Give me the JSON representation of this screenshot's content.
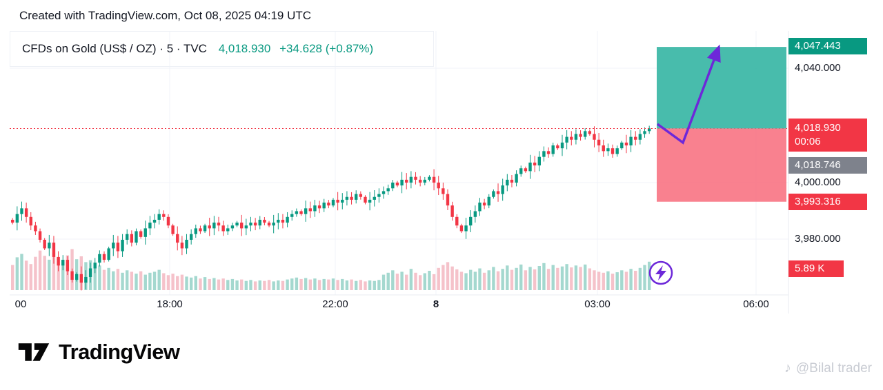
{
  "header": {
    "credit": "Created with TradingView.com, Oct 08, 2025 04:19 UTC"
  },
  "legend": {
    "symbol": "CFDs on Gold (US$ / OZ) · 5 · TVC",
    "price": "4,018.930",
    "change": "+34.628 (+0.87%)"
  },
  "price_scale": {
    "target_badge": "4,047.443",
    "gridline_labels": [
      "4,040.000",
      "4,000.000",
      "3,980.000"
    ],
    "last_price_badge": {
      "price": "4,018.930",
      "countdown": "00:06"
    },
    "prev_close_badge": "4,018.746",
    "stop_badge": "3,993.316",
    "volume_badge": "5.89 K"
  },
  "time_axis": [
    "00",
    "18:00",
    "22:00",
    "8",
    "03:00",
    "06:00"
  ],
  "footer": {
    "brand": "TradingView",
    "watermark": "@Bilal trader"
  },
  "icons": {
    "music_note": "♪",
    "lightning": "lightning-bolt"
  },
  "colors": {
    "up": "#089981",
    "down": "#f23645",
    "vol_up": "#a4d8cf",
    "vol_down": "#f5c2ca",
    "profit_zone": "#2fb3a1",
    "loss_zone": "#f8707f",
    "arrow": "#6d28d9",
    "badge_teal": "#089981",
    "badge_red": "#f23645",
    "badge_gray": "#7e828c",
    "grid": "#f0f3fa",
    "text": "#131722"
  },
  "chart_data": {
    "type": "candlestick",
    "title": "CFDs on Gold (US$ / OZ) · 5 · TVC",
    "interval_minutes": 5,
    "last_price": 4018.93,
    "change": 34.628,
    "change_pct": 0.87,
    "y_tick_labels": [
      4040.0,
      4000.0,
      3980.0
    ],
    "x_tick_labels": [
      "00",
      "18:00",
      "22:00",
      "8",
      "03:00",
      "06:00"
    ],
    "ylim": [
      3961,
      4053
    ],
    "position_tool": {
      "type": "long",
      "entry": 4018.93,
      "target": 4047.443,
      "stop": 3993.316
    },
    "prev_close": 4018.746,
    "last_volume_label": "5.89 K",
    "closes": [
      3986,
      3989,
      3991,
      3988,
      3985,
      3983,
      3980,
      3977,
      3979,
      3974,
      3971,
      3973,
      3969,
      3966,
      3968,
      3965,
      3967,
      3970,
      3972,
      3975,
      3973,
      3977,
      3979,
      3976,
      3980,
      3982,
      3979,
      3983,
      3981,
      3984,
      3986,
      3987,
      3989,
      3988,
      3985,
      3982,
      3979,
      3977,
      3980,
      3982,
      3984,
      3983,
      3985,
      3984,
      3986,
      3985,
      3983,
      3984,
      3985,
      3986,
      3984,
      3985,
      3986,
      3985,
      3987,
      3986,
      3985,
      3986,
      3987,
      3986,
      3988,
      3989,
      3990,
      3989,
      3991,
      3990,
      3992,
      3991,
      3993,
      3992,
      3994,
      3993,
      3994,
      3995,
      3994,
      3996,
      3995,
      3993,
      3994,
      3995,
      3996,
      3997,
      3998,
      4000,
      3999,
      4001,
      4000,
      4002,
      4001,
      4000,
      4001,
      4002,
      4000,
      3998,
      3996,
      3992,
      3988,
      3985,
      3983,
      3985,
      3988,
      3990,
      3993,
      3992,
      3995,
      3997,
      3996,
      3999,
      4001,
      4000,
      4003,
      4005,
      4004,
      4007,
      4006,
      4009,
      4011,
      4010,
      4013,
      4012,
      4014,
      4016,
      4015,
      4017,
      4016,
      4018,
      4017,
      4015,
      4013,
      4011,
      4012,
      4010,
      4012,
      4014,
      4013,
      4016,
      4015,
      4017,
      4018,
      4018.93
    ],
    "volumes_k": [
      5.2,
      6.8,
      7.5,
      6.1,
      5.4,
      6.9,
      8.2,
      7.1,
      6.3,
      7.8,
      6.6,
      5.9,
      7.2,
      8.5,
      6.4,
      7.0,
      5.8,
      6.2,
      4.8,
      5.1,
      4.2,
      4.6,
      3.9,
      4.4,
      3.6,
      4.1,
      3.8,
      3.4,
      3.9,
      3.2,
      3.6,
      3.8,
      4.2,
      3.5,
      3.1,
      3.4,
      2.9,
      3.2,
      2.8,
      2.6,
      2.9,
      2.4,
      2.7,
      2.3,
      2.5,
      2.2,
      2.4,
      2.1,
      2.3,
      2.0,
      2.2,
      1.9,
      2.1,
      1.8,
      2.0,
      1.9,
      2.1,
      1.8,
      2.0,
      1.9,
      2.2,
      2.4,
      2.6,
      2.3,
      2.5,
      2.2,
      2.4,
      2.1,
      2.3,
      2.2,
      2.4,
      2.1,
      2.3,
      2.0,
      2.2,
      1.9,
      2.1,
      1.8,
      2.0,
      1.9,
      2.1,
      3.2,
      3.6,
      4.1,
      3.4,
      3.8,
      3.2,
      4.4,
      3.6,
      3.1,
      3.5,
      4.0,
      3.3,
      4.6,
      5.2,
      5.8,
      4.9,
      4.3,
      3.8,
      3.5,
      4.2,
      3.8,
      4.5,
      3.6,
      4.1,
      4.8,
      3.9,
      4.4,
      5.1,
      4.2,
      4.6,
      5.3,
      4.1,
      4.8,
      4.3,
      5.0,
      5.6,
      4.4,
      5.2,
      4.6,
      4.9,
      5.4,
      4.7,
      5.1,
      4.8,
      5.3,
      4.5,
      4.1,
      3.8,
      3.6,
      3.9,
      3.4,
      3.7,
      4.1,
      3.8,
      4.4,
      4.0,
      4.6,
      5.2,
      5.89
    ]
  }
}
